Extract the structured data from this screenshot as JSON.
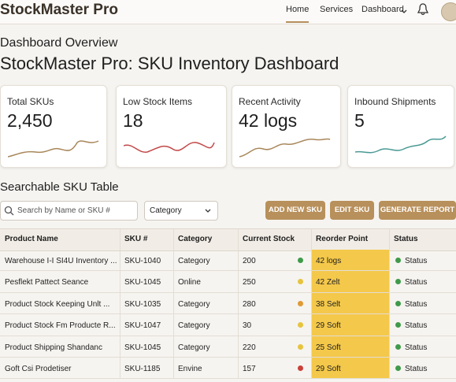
{
  "header": {
    "brand": "StockMaster Pro",
    "nav": [
      "Home",
      "Services",
      "Dashboard"
    ]
  },
  "page": {
    "subtitle": "Dashboard Overview",
    "title": "StockMaster Pro: SKU Inventory Dashboard"
  },
  "cards": [
    {
      "label": "Total SKUs",
      "value": "2,450"
    },
    {
      "label": "Low Stock Items",
      "value": "18"
    },
    {
      "label": "Recent Activity",
      "value": "42 logs"
    },
    {
      "label": "Inbound Shipments",
      "value": "5"
    }
  ],
  "table_section": {
    "title": "Searchable SKU Table",
    "search_placeholder": "Search by Name or SKU #",
    "filter": "Category",
    "buttons": [
      "ADD NEW SKU",
      "EDIT SKU",
      "GENERATE REPORT"
    ]
  },
  "table": {
    "columns": [
      "Product Name",
      "SKU #",
      "Category",
      "Current Stock",
      "Reorder Point",
      "Status"
    ],
    "rows": [
      {
        "cells": [
          "Warehouse I-I SI4U Inventory ...",
          "SKU-1040",
          "Category",
          "200",
          "42 logs",
          "Status"
        ],
        "dot": "#3f9a4a"
      },
      {
        "cells": [
          "Pesflekt Pattect Seance",
          "SKU-1045",
          "Online",
          "250",
          "42 Zelt",
          "Status"
        ],
        "dot": "#e6c43e"
      },
      {
        "cells": [
          "Product Stock Keeping Unlt ...",
          "SKU-1035",
          "Category",
          "280",
          "38 Selt",
          "Status"
        ],
        "dot": "#e09a36"
      },
      {
        "cells": [
          "Product Stock Fm Producte R...",
          "SKU-1047",
          "Category",
          "30",
          "29 Soft",
          "Status"
        ],
        "dot": "#e6c43e"
      },
      {
        "cells": [
          "Product Shipping Shandanc",
          "SKU-1045",
          "Category",
          "220",
          "25 Soft",
          "Status"
        ],
        "dot": "#e6c43e"
      },
      {
        "cells": [
          "Goft Csi Prodetiser",
          "SKU-1185",
          "Envine",
          "157",
          "29 Soft",
          "Status"
        ],
        "dot": "#c9413a"
      }
    ]
  }
}
